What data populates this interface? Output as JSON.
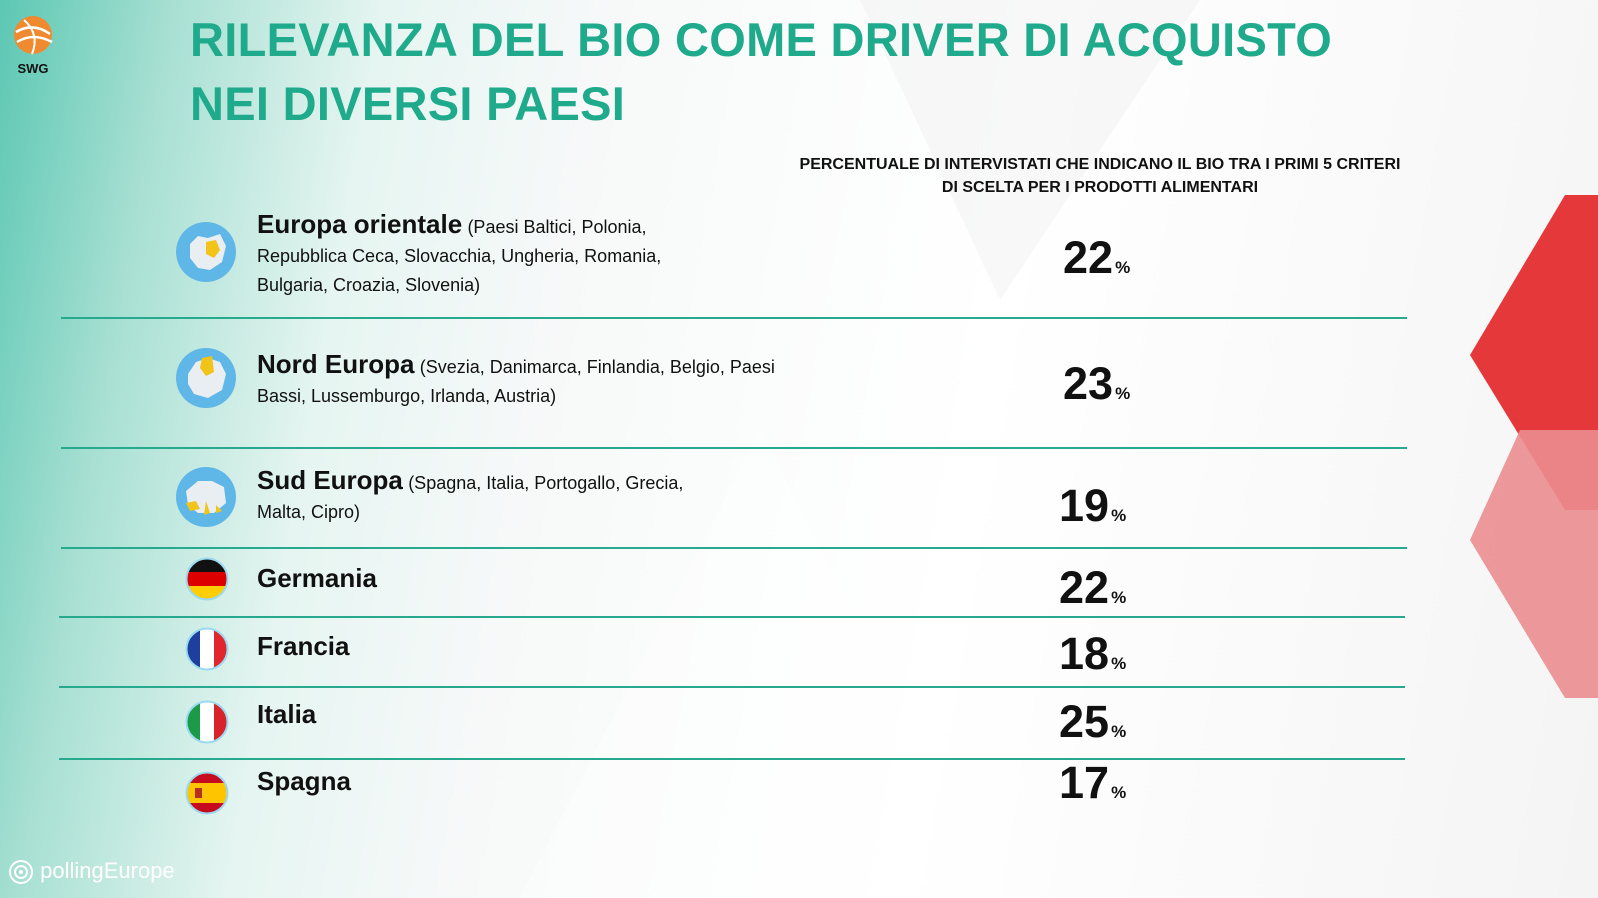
{
  "brand": {
    "logo_text": "SWG",
    "footer_text": "pollingEurope"
  },
  "title_lines": [
    "RILEVANZA DEL BIO COME DRIVER DI ACQUISTO",
    "NEI DIVERSI PAESI"
  ],
  "column_header_lines": [
    "PERCENTUALE DI INTERVISTATI CHE INDICANO IL BIO TRA I PRIMI 5 CRITERI",
    "DI SCELTA PER I PRODOTTI ALIMENTARI"
  ],
  "colors": {
    "title": "#1faa8c",
    "divider": "#26a98d",
    "accent_red": "#e5383b"
  },
  "chart_data": {
    "type": "table",
    "title": "RILEVANZA DEL BIO COME DRIVER DI ACQUISTO NEI DIVERSI PAESI",
    "value_label": "PERCENTUALE DI INTERVISTATI CHE INDICANO IL BIO TRA I PRIMI 5 CRITERI DI SCELTA PER I PRODOTTI ALIMENTARI",
    "unit": "%",
    "rows": [
      {
        "name": "Europa orientale",
        "detail": "(Paesi Baltici, Polonia, Repubblica Ceca, Slovacchia, Ungheria, Romania, Bulgaria, Croazia, Slovenia)",
        "value": 22,
        "icon": "europe-map-east-icon"
      },
      {
        "name": "Nord Europa",
        "detail": "(Svezia, Danimarca, Finlandia, Belgio, Paesi Bassi, Lussemburgo, Irlanda, Austria)",
        "value": 23,
        "icon": "europe-map-north-icon"
      },
      {
        "name": "Sud Europa",
        "detail": "(Spagna, Italia, Portogallo, Grecia, Malta, Cipro)",
        "value": 19,
        "icon": "europe-map-south-icon"
      },
      {
        "name": "Germania",
        "detail": "",
        "value": 22,
        "icon": "germany-flag-icon"
      },
      {
        "name": "Francia",
        "detail": "",
        "value": 18,
        "icon": "france-flag-icon"
      },
      {
        "name": "Italia",
        "detail": "",
        "value": 25,
        "icon": "italy-flag-icon"
      },
      {
        "name": "Spagna",
        "detail": "",
        "value": 17,
        "icon": "spain-flag-icon"
      }
    ]
  }
}
